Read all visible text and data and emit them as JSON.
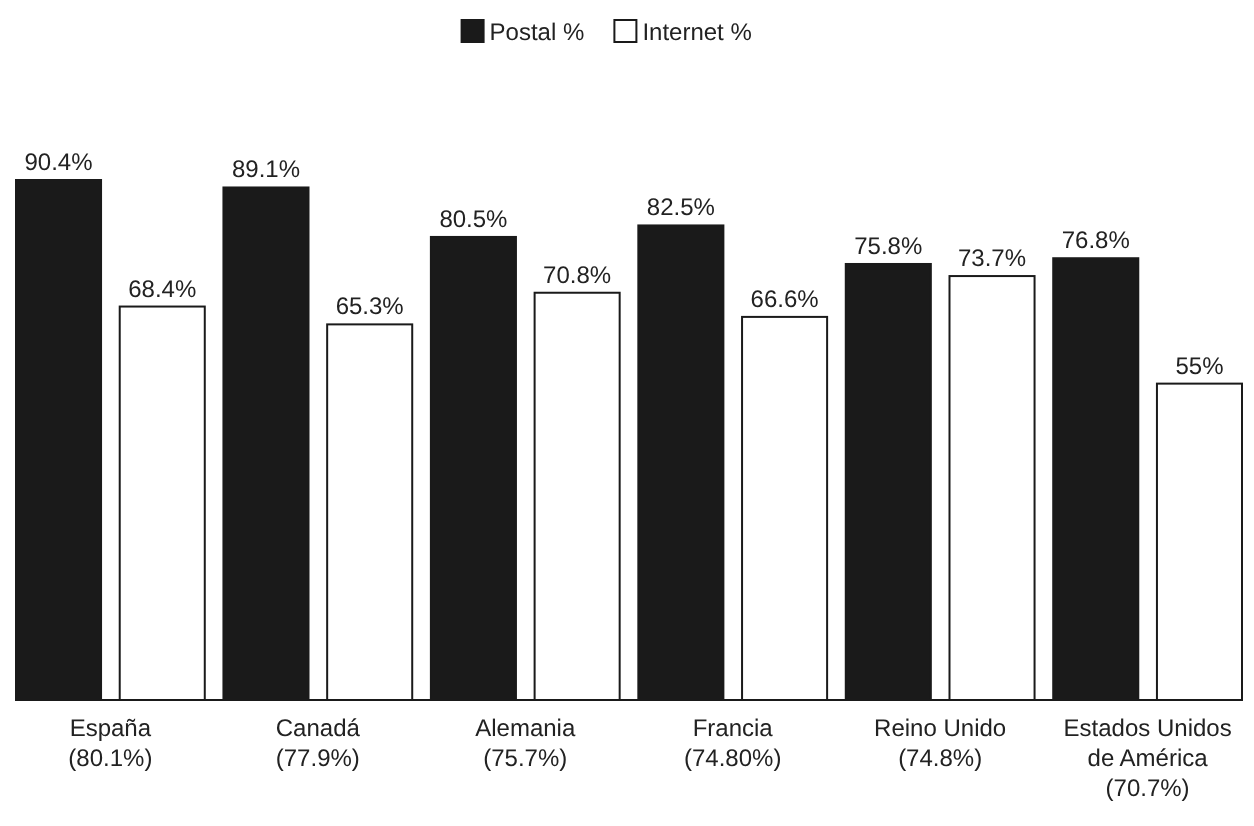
{
  "chart_data": {
    "type": "bar",
    "categories": [
      "España\n(80.1%)",
      "Canadá\n(77.9%)",
      "Alemania\n(75.7%)",
      "Francia\n(74.80%)",
      "Reino Unido\n(74.8%)",
      "Estados Unidos\nde América\n(70.7%)"
    ],
    "series": [
      {
        "name": "Postal %",
        "color": "#1a1a1a",
        "values": [
          90.4,
          89.1,
          80.5,
          82.5,
          75.8,
          76.8
        ],
        "value_labels": [
          "90.4%",
          "89.1%",
          "80.5%",
          "82.5%",
          "75.8%",
          "76.8%"
        ]
      },
      {
        "name": "Internet %",
        "color": "#ffffff",
        "values": [
          68.4,
          65.3,
          70.8,
          66.6,
          73.7,
          55
        ],
        "value_labels": [
          "68.4%",
          "65.3%",
          "70.8%",
          "66.6%",
          "73.7%",
          "55%"
        ]
      }
    ],
    "legend": "top",
    "tick_labels": "x"
  }
}
